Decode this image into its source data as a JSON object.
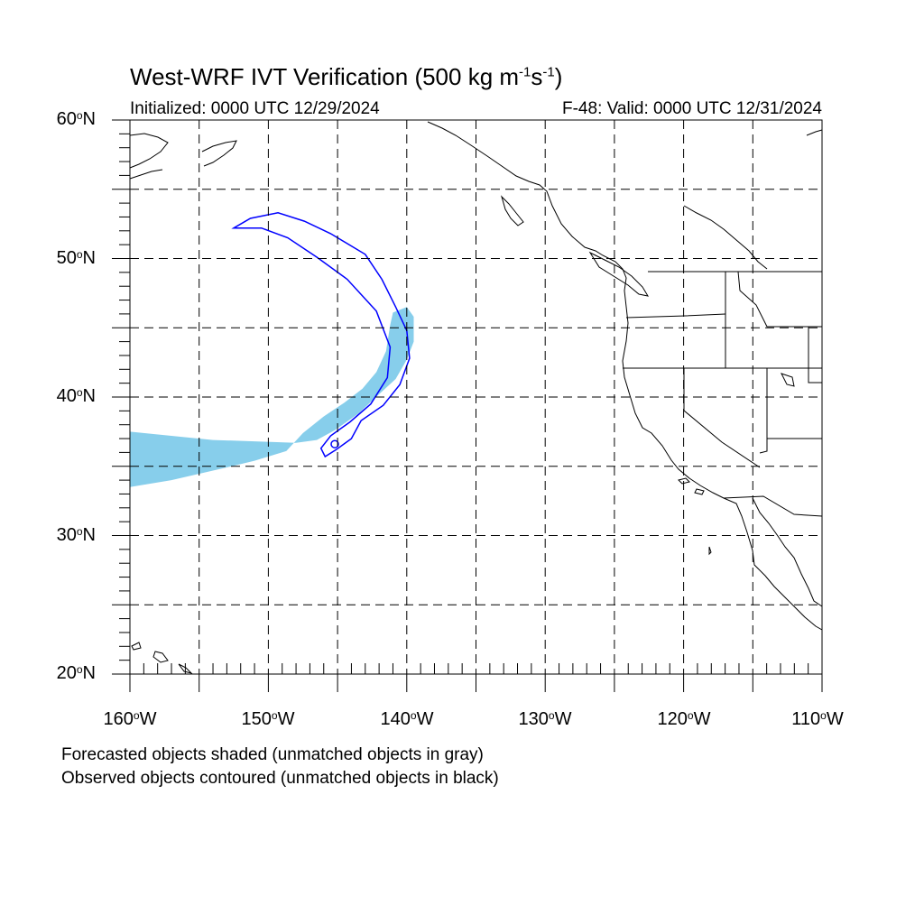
{
  "title": {
    "main": "West-WRF IVT Verification (500 kg m",
    "exp1": "-1",
    "mid": "s",
    "exp2": "-1",
    "tail": ")"
  },
  "subtitle": {
    "left": "Initialized: 0000 UTC 12/29/2024",
    "right": "F-48: Valid: 0000 UTC 12/31/2024"
  },
  "lat_labels": [
    {
      "value": "60",
      "hemi": "N"
    },
    {
      "value": "50",
      "hemi": "N"
    },
    {
      "value": "40",
      "hemi": "N"
    },
    {
      "value": "30",
      "hemi": "N"
    },
    {
      "value": "20",
      "hemi": "N"
    }
  ],
  "lon_labels": [
    {
      "value": "160",
      "hemi": "W"
    },
    {
      "value": "150",
      "hemi": "W"
    },
    {
      "value": "140",
      "hemi": "W"
    },
    {
      "value": "130",
      "hemi": "W"
    },
    {
      "value": "120",
      "hemi": "W"
    },
    {
      "value": "110",
      "hemi": "W"
    }
  ],
  "legend": {
    "line1": "Forecasted objects shaded (unmatched objects in gray)",
    "line2": "Observed objects contoured (unmatched objects in black)"
  },
  "degree_symbol": "o",
  "colors": {
    "forecast_fill": "#87ceeb",
    "observed_contour": "#0000ff",
    "coast": "#000000",
    "grid": "#000000"
  },
  "chart_data": {
    "type": "map",
    "projection": "cylindrical-equidistant",
    "lon_range": [
      -160,
      -110
    ],
    "lat_range": [
      20,
      60
    ],
    "grid_spacing_deg": 5,
    "forecast_object_lonlat": [
      [
        -160,
        37.5
      ],
      [
        -157,
        37.2
      ],
      [
        -154,
        36.9
      ],
      [
        -151,
        36.8
      ],
      [
        -148,
        36.7
      ],
      [
        -146.5,
        36.9
      ],
      [
        -145.2,
        37.6
      ],
      [
        -143.5,
        38.8
      ],
      [
        -142,
        40.2
      ],
      [
        -140.8,
        41.3
      ],
      [
        -140,
        42.7
      ],
      [
        -139.5,
        44.0
      ],
      [
        -139.5,
        45.8
      ],
      [
        -140,
        46.5
      ],
      [
        -141,
        46.1
      ],
      [
        -141.2,
        45.2
      ],
      [
        -141.5,
        43.3
      ],
      [
        -142.2,
        41.8
      ],
      [
        -143.2,
        40.6
      ],
      [
        -144.5,
        39.6
      ],
      [
        -146.0,
        38.6
      ],
      [
        -147.5,
        37.4
      ],
      [
        -148.7,
        36.1
      ],
      [
        -151,
        35.4
      ],
      [
        -153.5,
        34.8
      ],
      [
        -157,
        34.0
      ],
      [
        -160,
        33.5
      ]
    ],
    "observed_object_lonlat": [
      [
        -152.5,
        52.2
      ],
      [
        -151.3,
        52.9
      ],
      [
        -149.3,
        53.3
      ],
      [
        -147.4,
        52.7
      ],
      [
        -145.5,
        51.8
      ],
      [
        -143.0,
        50.3
      ],
      [
        -141.8,
        48.5
      ],
      [
        -140.8,
        46.5
      ],
      [
        -140.0,
        44.8
      ],
      [
        -139.8,
        42.8
      ],
      [
        -140.5,
        40.9
      ],
      [
        -141.7,
        39.4
      ],
      [
        -143.3,
        38.3
      ],
      [
        -144.0,
        37.0
      ],
      [
        -145.1,
        36.2
      ],
      [
        -145.9,
        35.7
      ],
      [
        -146.2,
        36.3
      ],
      [
        -145.5,
        37.2
      ],
      [
        -144.1,
        38.2
      ],
      [
        -142.6,
        39.5
      ],
      [
        -141.4,
        41.4
      ],
      [
        -141.2,
        43.6
      ],
      [
        -142.2,
        46.2
      ],
      [
        -144.3,
        48.5
      ],
      [
        -146.5,
        50.1
      ],
      [
        -148.6,
        51.5
      ],
      [
        -150.5,
        52.2
      ],
      [
        -152.5,
        52.2
      ]
    ]
  }
}
